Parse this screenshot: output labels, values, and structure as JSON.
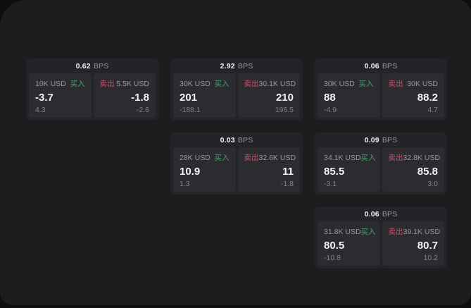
{
  "app": {
    "backdrop_color": "#0e0e0f",
    "surface_color": "#1d1d1f",
    "card_color": "#242428",
    "panel_color": "#2c2c30"
  },
  "labels": {
    "buy": "买入",
    "sell": "卖出",
    "bps_unit": "BPS"
  },
  "colors": {
    "buy_green": "#40a263",
    "sell_red": "#c9506b",
    "primary_text": "#f2f2f4",
    "secondary_text": "#97979c",
    "muted_text": "#828287"
  },
  "cards": [
    {
      "row": 0,
      "col": 0,
      "bps": "0.62",
      "buy": {
        "amount": "10K USD",
        "value": "-3.7",
        "delta": "4.3"
      },
      "sell": {
        "amount": "5.5K USD",
        "value": "-1.8",
        "delta": "-2.6"
      }
    },
    {
      "row": 0,
      "col": 1,
      "bps": "2.92",
      "buy": {
        "amount": "30K USD",
        "value": "201",
        "delta": "-188.1"
      },
      "sell": {
        "amount": "30.1K USD",
        "value": "210",
        "delta": "196.5"
      }
    },
    {
      "row": 0,
      "col": 2,
      "bps": "0.06",
      "buy": {
        "amount": "30K USD",
        "value": "88",
        "delta": "-4.9"
      },
      "sell": {
        "amount": "30K USD",
        "value": "88.2",
        "delta": "4.7"
      }
    },
    {
      "row": 1,
      "col": 1,
      "bps": "0.03",
      "buy": {
        "amount": "28K USD",
        "value": "10.9",
        "delta": "1.3"
      },
      "sell": {
        "amount": "32.6K USD",
        "value": "11",
        "delta": "-1.8"
      }
    },
    {
      "row": 1,
      "col": 2,
      "bps": "0.09",
      "buy": {
        "amount": "34.1K USD",
        "value": "85.5",
        "delta": "-3.1"
      },
      "sell": {
        "amount": "32.8K USD",
        "value": "85.8",
        "delta": "3.0"
      }
    },
    {
      "row": 2,
      "col": 2,
      "bps": "0.06",
      "buy": {
        "amount": "31.8K USD",
        "value": "80.5",
        "delta": "-10.8"
      },
      "sell": {
        "amount": "39.1K USD",
        "value": "80.7",
        "delta": "10.2"
      }
    }
  ]
}
